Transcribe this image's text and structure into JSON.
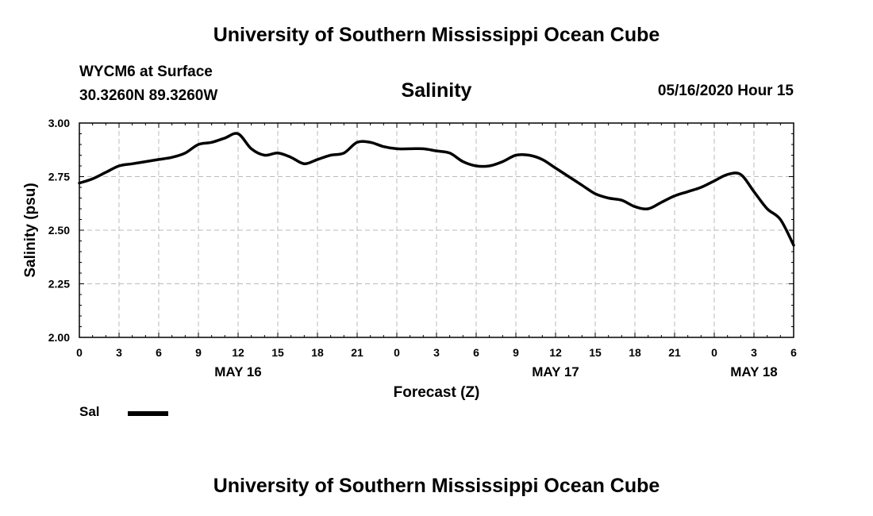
{
  "header": {
    "title": "University of Southern Mississippi Ocean Cube",
    "station": "WYCM6 at Surface",
    "coords": "30.3260N 89.3260W",
    "datetime": "05/16/2020 Hour 15"
  },
  "footer": {
    "title": "University of Southern Mississippi Ocean Cube"
  },
  "legend": {
    "label": "Sal",
    "color": "#000000"
  },
  "chart_data": {
    "type": "line",
    "title": "Salinity",
    "xlabel": "Forecast (Z)",
    "ylabel": "Salinity (psu)",
    "ylim": [
      2.0,
      3.0
    ],
    "xlim": [
      0,
      54
    ],
    "yticks": [
      "2.00",
      "2.25",
      "2.50",
      "2.75",
      "3.00"
    ],
    "xtick_labels": [
      "0",
      "3",
      "6",
      "9",
      "12",
      "15",
      "18",
      "21",
      "0",
      "3",
      "6",
      "9",
      "12",
      "15",
      "18",
      "21",
      "0",
      "3",
      "6"
    ],
    "date_labels": [
      {
        "label": "MAY 16",
        "x": 12
      },
      {
        "label": "MAY 17",
        "x": 36
      },
      {
        "label": "MAY 18",
        "x": 51
      }
    ],
    "grid": true,
    "series": [
      {
        "name": "Sal",
        "x": [
          0,
          1,
          2,
          3,
          4,
          5,
          6,
          7,
          8,
          9,
          10,
          11,
          12,
          13,
          14,
          15,
          16,
          17,
          18,
          19,
          20,
          21,
          22,
          23,
          24,
          25,
          26,
          27,
          28,
          29,
          30,
          31,
          32,
          33,
          34,
          35,
          36,
          37,
          38,
          39,
          40,
          41,
          42,
          43,
          44,
          45,
          46,
          47,
          48,
          49,
          50,
          51,
          52,
          53,
          54
        ],
        "values": [
          2.72,
          2.74,
          2.77,
          2.8,
          2.81,
          2.82,
          2.83,
          2.84,
          2.86,
          2.9,
          2.91,
          2.93,
          2.95,
          2.88,
          2.85,
          2.86,
          2.84,
          2.81,
          2.83,
          2.85,
          2.86,
          2.91,
          2.91,
          2.89,
          2.88,
          2.88,
          2.88,
          2.87,
          2.86,
          2.82,
          2.8,
          2.8,
          2.82,
          2.85,
          2.85,
          2.83,
          2.79,
          2.75,
          2.71,
          2.67,
          2.65,
          2.64,
          2.61,
          2.6,
          2.63,
          2.66,
          2.68,
          2.7,
          2.73,
          2.76,
          2.76,
          2.68,
          2.6,
          2.55,
          2.43
        ]
      }
    ]
  }
}
